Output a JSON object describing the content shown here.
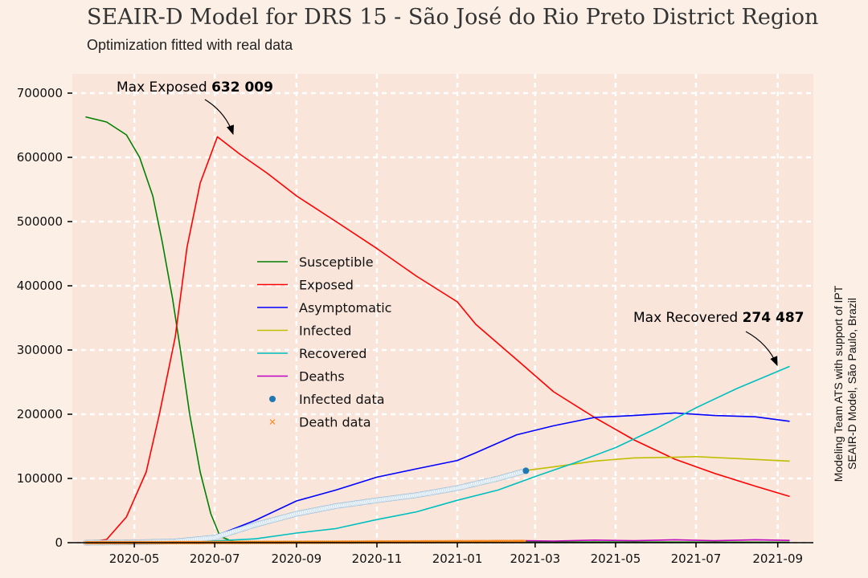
{
  "title": "SEAIR-D Model for DRS 15 - São José do Rio Preto District Region",
  "subtitle": "Optimization fitted with real data",
  "side_note": [
    "Modeling Team ATS with support of IPT",
    "SEAIR-D Model, São Paulo, Brazil"
  ],
  "colors": {
    "background": "#fcf0e6",
    "plot_background": "#f9e5da",
    "grid": "#ffffff",
    "susceptible": "#008000",
    "exposed": "#ff0000",
    "asymptomatic": "#0000ff",
    "infected": "#bfbf00",
    "recovered": "#00bfbf",
    "deaths": "#bf00bf",
    "infected_data": "#1f77b4",
    "death_data": "#ff7f0e"
  },
  "chart_data": {
    "type": "line",
    "title": "SEAIR-D Model for DRS 15 - São José do Rio Preto District Region",
    "subtitle": "Optimization fitted with real data",
    "xlim": [
      "2020-03-15",
      "2021-09-28"
    ],
    "ylim": [
      0,
      730000
    ],
    "grid": true,
    "legend_position": "center-left",
    "x_ticks": [
      "2020-05",
      "2020-07",
      "2020-09",
      "2020-11",
      "2021-01",
      "2021-03",
      "2021-05",
      "2021-07",
      "2021-09"
    ],
    "y_ticks": [
      "0",
      "100000",
      "200000",
      "300000",
      "400000",
      "500000",
      "600000",
      "700000"
    ],
    "series": [
      {
        "name": "Susceptible",
        "color": "#008000",
        "style": "line",
        "points": [
          [
            "2020-03-25",
            663000
          ],
          [
            "2020-04-10",
            655000
          ],
          [
            "2020-04-25",
            635000
          ],
          [
            "2020-05-05",
            600000
          ],
          [
            "2020-05-15",
            540000
          ],
          [
            "2020-05-22",
            470000
          ],
          [
            "2020-05-30",
            380000
          ],
          [
            "2020-06-05",
            300000
          ],
          [
            "2020-06-12",
            200000
          ],
          [
            "2020-06-20",
            110000
          ],
          [
            "2020-06-28",
            45000
          ],
          [
            "2020-07-05",
            10000
          ],
          [
            "2020-07-15",
            1500
          ],
          [
            "2021-09-10",
            800
          ]
        ]
      },
      {
        "name": "Exposed",
        "color": "#ff0000",
        "style": "line",
        "points": [
          [
            "2020-03-25",
            0
          ],
          [
            "2020-04-10",
            5000
          ],
          [
            "2020-04-25",
            40000
          ],
          [
            "2020-05-10",
            110000
          ],
          [
            "2020-05-20",
            200000
          ],
          [
            "2020-06-01",
            320000
          ],
          [
            "2020-06-10",
            460000
          ],
          [
            "2020-06-20",
            560000
          ],
          [
            "2020-07-03",
            632009
          ],
          [
            "2020-07-20",
            605000
          ],
          [
            "2020-08-10",
            575000
          ],
          [
            "2020-09-01",
            540000
          ],
          [
            "2020-10-01",
            500000
          ],
          [
            "2020-11-01",
            458000
          ],
          [
            "2020-12-01",
            415000
          ],
          [
            "2021-01-01",
            375000
          ],
          [
            "2021-01-15",
            340000
          ],
          [
            "2021-02-15",
            285000
          ],
          [
            "2021-03-15",
            235000
          ],
          [
            "2021-04-15",
            195000
          ],
          [
            "2021-05-15",
            160000
          ],
          [
            "2021-06-15",
            130000
          ],
          [
            "2021-07-15",
            108000
          ],
          [
            "2021-08-15",
            88000
          ],
          [
            "2021-09-10",
            72000
          ]
        ]
      },
      {
        "name": "Asymptomatic",
        "color": "#0000ff",
        "style": "line",
        "points": [
          [
            "2020-03-25",
            0
          ],
          [
            "2020-05-15",
            2000
          ],
          [
            "2020-07-01",
            10000
          ],
          [
            "2020-08-01",
            35000
          ],
          [
            "2020-09-01",
            65000
          ],
          [
            "2020-10-01",
            82000
          ],
          [
            "2020-11-01",
            102000
          ],
          [
            "2020-12-01",
            115000
          ],
          [
            "2021-01-01",
            128000
          ],
          [
            "2021-01-15",
            140000
          ],
          [
            "2021-02-15",
            168000
          ],
          [
            "2021-03-15",
            182000
          ],
          [
            "2021-04-15",
            195000
          ],
          [
            "2021-05-15",
            198000
          ],
          [
            "2021-06-15",
            202000
          ],
          [
            "2021-07-15",
            198000
          ],
          [
            "2021-08-15",
            196000
          ],
          [
            "2021-09-10",
            189000
          ]
        ]
      },
      {
        "name": "Infected",
        "color": "#bfbf00",
        "style": "line",
        "points": [
          [
            "2021-02-20",
            112000
          ],
          [
            "2021-03-15",
            118000
          ],
          [
            "2021-04-15",
            127000
          ],
          [
            "2021-05-15",
            132000
          ],
          [
            "2021-06-15",
            133000
          ],
          [
            "2021-07-01",
            134000
          ],
          [
            "2021-08-01",
            131000
          ],
          [
            "2021-09-10",
            127000
          ]
        ]
      },
      {
        "name": "Recovered",
        "color": "#00bfbf",
        "style": "line",
        "points": [
          [
            "2020-03-25",
            0
          ],
          [
            "2020-06-15",
            1000
          ],
          [
            "2020-08-01",
            6000
          ],
          [
            "2020-09-01",
            15000
          ],
          [
            "2020-10-01",
            22000
          ],
          [
            "2020-11-01",
            36000
          ],
          [
            "2020-12-01",
            48000
          ],
          [
            "2021-01-01",
            66000
          ],
          [
            "2021-02-01",
            82000
          ],
          [
            "2021-03-01",
            103000
          ],
          [
            "2021-04-01",
            125000
          ],
          [
            "2021-05-01",
            148000
          ],
          [
            "2021-06-01",
            178000
          ],
          [
            "2021-07-01",
            210000
          ],
          [
            "2021-08-01",
            240000
          ],
          [
            "2021-09-10",
            274487
          ]
        ]
      },
      {
        "name": "Deaths",
        "color": "#bf00bf",
        "style": "line",
        "points": [
          [
            "2021-02-22",
            3000
          ],
          [
            "2021-03-15",
            2500
          ],
          [
            "2021-04-15",
            4000
          ],
          [
            "2021-05-15",
            3000
          ],
          [
            "2021-06-15",
            4500
          ],
          [
            "2021-07-15",
            3000
          ],
          [
            "2021-08-15",
            4500
          ],
          [
            "2021-09-10",
            3500
          ]
        ]
      },
      {
        "name": "Infected data",
        "color": "#1f77b4",
        "style": "dots",
        "points": [
          [
            "2020-03-25",
            0
          ],
          [
            "2020-05-01",
            500
          ],
          [
            "2020-06-01",
            2000
          ],
          [
            "2020-07-01",
            8000
          ],
          [
            "2020-08-01",
            28000
          ],
          [
            "2020-09-01",
            45000
          ],
          [
            "2020-10-01",
            57000
          ],
          [
            "2020-11-01",
            66000
          ],
          [
            "2020-12-01",
            74000
          ],
          [
            "2021-01-01",
            85000
          ],
          [
            "2021-02-01",
            100000
          ],
          [
            "2021-02-22",
            112000
          ]
        ]
      },
      {
        "name": "Death data",
        "color": "#ff7f0e",
        "style": "x",
        "points": [
          [
            "2020-03-25",
            0
          ],
          [
            "2020-07-01",
            300
          ],
          [
            "2020-10-01",
            800
          ],
          [
            "2021-01-01",
            1500
          ],
          [
            "2021-02-22",
            2000
          ]
        ]
      }
    ],
    "annotations": [
      {
        "label": "Max Exposed",
        "value": "632 009",
        "x": "2020-07-03",
        "y": 632009
      },
      {
        "label": "Max Recovered",
        "value": "274 487",
        "x": "2021-09-10",
        "y": 274487
      }
    ]
  }
}
